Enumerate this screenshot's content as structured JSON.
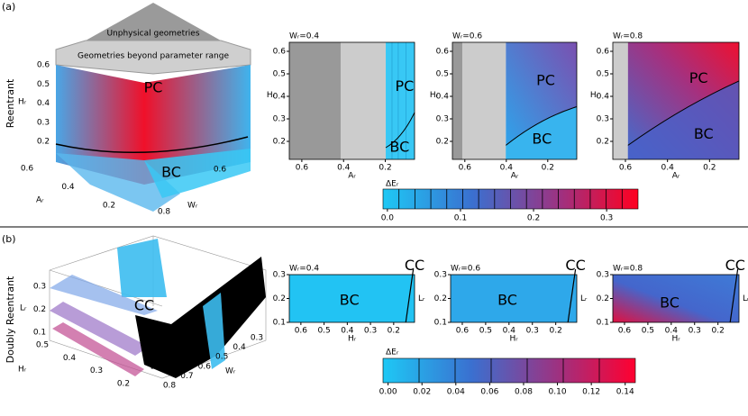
{
  "panel_a": {
    "label": "(a)",
    "row_label": "Reentrant",
    "surface": {
      "top_labels": [
        "Unphysical geometries",
        "Geometries beyond parameter range"
      ],
      "regions": [
        "PC",
        "BC"
      ],
      "z_label": "Hᵣ",
      "z_ticks": [
        0.6,
        0.5,
        0.4,
        0.3,
        0.2
      ],
      "x_label": "Aᵣ",
      "x_ticks": [
        0.6,
        0.4,
        0.2
      ],
      "y_label": "Wᵣ",
      "y_ticks": [
        0.6,
        0.8
      ]
    },
    "slices": [
      {
        "title": "Wᵣ=0.4",
        "x_label": "Aᵣ",
        "y_label": "Hᵣ",
        "xlim": [
          0.66,
          0.06
        ],
        "xticks": [
          0.6,
          0.4,
          0.2
        ],
        "ylim": [
          0.12,
          0.64
        ],
        "yticks": [
          0.2,
          0.3,
          0.4,
          0.5,
          0.6
        ],
        "regions": [
          "PC",
          "BC"
        ]
      },
      {
        "title": "Wᵣ=0.6",
        "x_label": "Aᵣ",
        "y_label": "Hᵣ",
        "xlim": [
          0.66,
          0.06
        ],
        "xticks": [
          0.6,
          0.4,
          0.2
        ],
        "ylim": [
          0.12,
          0.64
        ],
        "yticks": [
          0.2,
          0.3,
          0.4,
          0.5,
          0.6
        ],
        "regions": [
          "PC",
          "BC"
        ]
      },
      {
        "title": "Wᵣ=0.8",
        "x_label": "Aᵣ",
        "y_label": "Hᵣ",
        "xlim": [
          0.66,
          0.06
        ],
        "xticks": [
          0.6,
          0.4,
          0.2
        ],
        "ylim": [
          0.12,
          0.64
        ],
        "yticks": [
          0.2,
          0.3,
          0.4,
          0.5,
          0.6
        ],
        "regions": [
          "PC",
          "BC"
        ]
      }
    ],
    "colorbar": {
      "label": "ΔEᵣ",
      "lim": [
        -0.006,
        0.343
      ],
      "ticks": [
        {
          "value": 0,
          "label": "0.0"
        },
        0.1,
        0.2,
        0.3
      ]
    }
  },
  "panel_b": {
    "label": "(b)",
    "row_label": "Doubly Reentrant",
    "surface": {
      "regions": [
        "CC",
        "BC"
      ],
      "z_label": "Lᵣ",
      "z_ticks": [
        0.3,
        0.2,
        0.1
      ],
      "x_label": "Hᵣ",
      "x_ticks": [
        0.5,
        0.4,
        0.3,
        0.2
      ],
      "y_label": "Wᵣ",
      "y_ticks": [
        0.8,
        0.7,
        0.6,
        0.5,
        0.4,
        0.3
      ]
    },
    "slices": [
      {
        "title": "Wᵣ=0.4",
        "x_label": "Hᵣ",
        "y_label": "Lᵣ",
        "xlim": [
          0.65,
          0.11
        ],
        "xticks": [
          0.6,
          0.5,
          0.4,
          0.3,
          0.2
        ],
        "ylim": [
          0.1,
          0.3
        ],
        "yticks": [
          0.1,
          0.2,
          0.3
        ],
        "regions": [
          "BC",
          "CC"
        ]
      },
      {
        "title": "Wᵣ=0.6",
        "x_label": "Hᵣ",
        "y_label": "Lᵣ",
        "xlim": [
          0.65,
          0.11
        ],
        "xticks": [
          0.6,
          0.5,
          0.4,
          0.3,
          0.2
        ],
        "ylim": [
          0.1,
          0.3
        ],
        "yticks": [
          0.1,
          0.2,
          0.3
        ],
        "regions": [
          "BC",
          "CC"
        ]
      },
      {
        "title": "Wᵣ=0.8",
        "x_label": "Hᵣ",
        "y_label": "Lᵣ",
        "xlim": [
          0.65,
          0.11
        ],
        "xticks": [
          0.6,
          0.5,
          0.4,
          0.3,
          0.2
        ],
        "ylim": [
          0.1,
          0.3
        ],
        "yticks": [
          0.1,
          0.2,
          0.3
        ],
        "regions": [
          "BC",
          "CC"
        ]
      }
    ],
    "colorbar": {
      "label": "ΔEᵣ",
      "lim": [
        -0.003,
        0.146
      ],
      "ticks": [
        {
          "value": 0,
          "label": "0.00"
        },
        0.02,
        0.04,
        0.06,
        0.08,
        {
          "value": 0.1,
          "label": "0.10"
        },
        0.12,
        0.14
      ]
    }
  }
}
